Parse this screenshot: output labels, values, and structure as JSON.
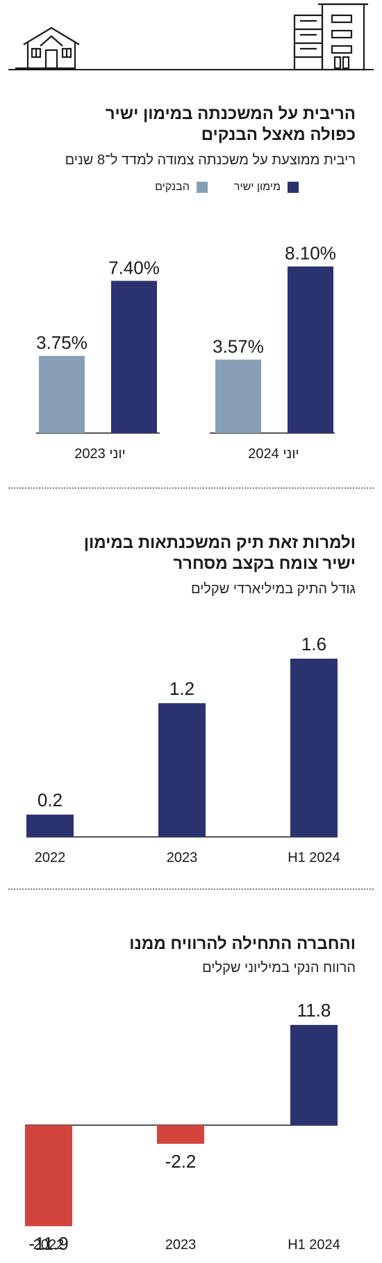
{
  "colors": {
    "direct": "#2a3270",
    "banks": "#869fb6",
    "loss": "#d2453e",
    "ink": "#1a1a1a"
  },
  "header": {
    "icons": [
      "house-icon",
      "building-icon"
    ]
  },
  "chart1": {
    "title_line1": "הריבית על המשכנתה במימון ישיר",
    "title_line2": "כפולה מאצל הבנקים",
    "subtitle": "ריבית ממוצעת על משכנתה צמודה למדד ל־8 שנים",
    "legend": [
      {
        "label": "מימון ישיר",
        "color": "#2a3270"
      },
      {
        "label": "הבנקים",
        "color": "#869fb6"
      }
    ]
  },
  "chart2": {
    "title_line1": "ולמרות זאת תיק המשכנתאות במימון",
    "title_line2": "ישיר צומח בקצב מסחרר",
    "subtitle": "גודל התיק במיליארדי שקלים"
  },
  "chart3": {
    "title_line1": "והחברה התחילה להרוויח ממנו",
    "subtitle": "הרווח הנקי במיליוני שקלים"
  },
  "chart_data": [
    {
      "type": "bar",
      "categories": [
        "יוני 2023",
        "יוני 2024"
      ],
      "series": [
        {
          "name": "הבנקים",
          "values": [
            3.75,
            3.57
          ],
          "labels": [
            "3.75%",
            "3.57%"
          ],
          "color": "#869fb6"
        },
        {
          "name": "מימון ישיר",
          "values": [
            7.4,
            8.1
          ],
          "labels": [
            "7.40%",
            "8.10%"
          ],
          "color": "#2a3270"
        }
      ],
      "ylim": [
        0,
        8.8
      ],
      "grid": false
    },
    {
      "type": "bar",
      "categories": [
        "2022",
        "2023",
        "H1 2024"
      ],
      "values": [
        0.2,
        1.2,
        1.6
      ],
      "labels": [
        "0.2",
        "1.2",
        "1.6"
      ],
      "ylim": [
        0,
        1.8
      ],
      "grid": false
    },
    {
      "type": "bar",
      "categories": [
        "2022",
        "2023",
        "H1 2024"
      ],
      "values": [
        -11.9,
        -2.2,
        11.8
      ],
      "labels": [
        "-11.9",
        "-2.2",
        "11.8"
      ],
      "ylim": [
        -13,
        13
      ],
      "grid": false
    }
  ]
}
